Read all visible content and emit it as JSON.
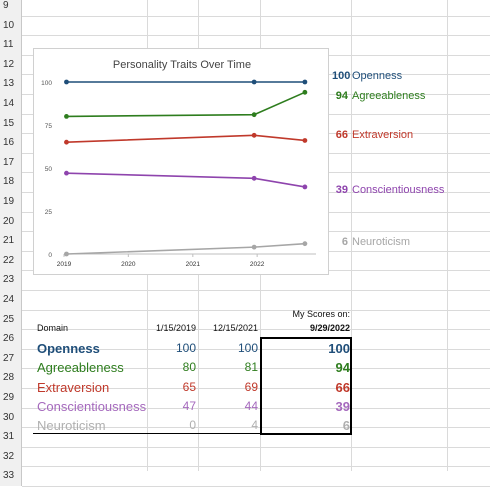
{
  "row_numbers": [
    "9",
    "10",
    "11",
    "12",
    "13",
    "14",
    "15",
    "16",
    "17",
    "18",
    "19",
    "20",
    "21",
    "22",
    "23",
    "24",
    "25",
    "26",
    "27",
    "28",
    "29",
    "30",
    "31",
    "32",
    "33"
  ],
  "chart_data": {
    "type": "line",
    "title": "Personality Traits Over Time",
    "xlabel": "",
    "ylabel": "",
    "x_ticks": [
      "2019",
      "2020",
      "2021",
      "2022"
    ],
    "x_tick_values": [
      "2019-01-01",
      "2020-01-01",
      "2021-01-01",
      "2022-01-01"
    ],
    "y_ticks": [
      0,
      25,
      50,
      75,
      100
    ],
    "ylim": [
      0,
      100
    ],
    "xlim": [
      "2019-01-01",
      "2022-12-01"
    ],
    "grid": false,
    "x": [
      "2019-01-15",
      "2021-12-15",
      "2022-09-29"
    ],
    "series": [
      {
        "name": "Openness",
        "values": [
          100,
          100,
          100
        ],
        "color": "#1f4e79"
      },
      {
        "name": "Agreeableness",
        "values": [
          80,
          81,
          94
        ],
        "color": "#2e7d1e"
      },
      {
        "name": "Extraversion",
        "values": [
          65,
          69,
          66
        ],
        "color": "#c0392b"
      },
      {
        "name": "Conscientiousness",
        "values": [
          47,
          44,
          39
        ],
        "color": "#8e44ad"
      },
      {
        "name": "Neuroticism",
        "values": [
          0,
          4,
          6
        ],
        "color": "#a6a6a6"
      }
    ]
  },
  "side_labels": [
    {
      "value": "100",
      "name": "Openness",
      "color": "#1f4e79"
    },
    {
      "value": "94",
      "name": "Agreeableness",
      "color": "#2e7d1e"
    },
    {
      "value": "66",
      "name": "Extraversion",
      "color": "#c0392b"
    },
    {
      "value": "39",
      "name": "Conscientiousness",
      "color": "#8e44ad"
    },
    {
      "value": "6",
      "name": "Neuroticism",
      "color": "#a6a6a6"
    }
  ],
  "table": {
    "my_scores_label": "My Scores on:",
    "domain_header": "Domain",
    "date1": "1/15/2019",
    "date2": "12/15/2021",
    "date3": "9/29/2022",
    "rows": [
      {
        "domain": "Openness",
        "v1": "100",
        "v2": "100",
        "v3": "100",
        "color": "#1f4e79"
      },
      {
        "domain": "Agreeableness",
        "v1": "80",
        "v2": "81",
        "v3": "94",
        "color": "#2e7d1e"
      },
      {
        "domain": "Extraversion",
        "v1": "65",
        "v2": "69",
        "v3": "66",
        "color": "#c0392b"
      },
      {
        "domain": "Conscientiousness",
        "v1": "47",
        "v2": "44",
        "v3": "39",
        "color": "#a569bd"
      },
      {
        "domain": "Neuroticism",
        "v1": "0",
        "v2": "4",
        "v3": "6",
        "color": "#b0b0b0"
      }
    ]
  }
}
